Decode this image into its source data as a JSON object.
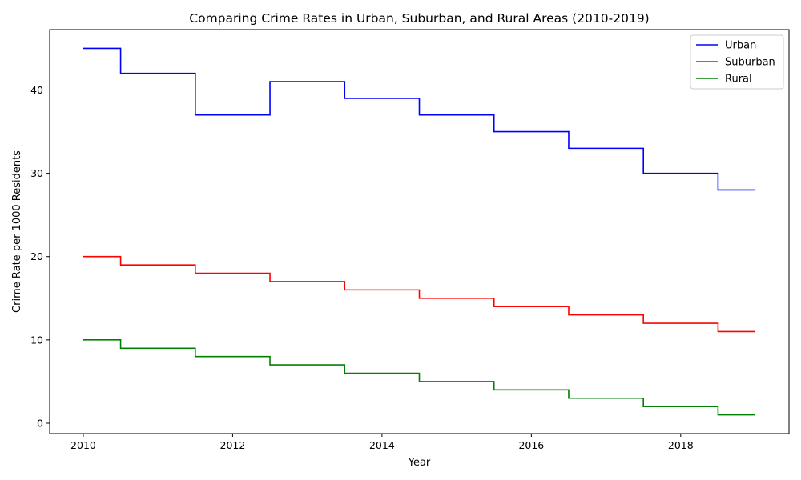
{
  "chart_data": {
    "type": "line",
    "step": "mid",
    "title": "Comparing Crime Rates in Urban, Suburban, and Rural Areas (2010-2019)",
    "xlabel": "Year",
    "ylabel": "Crime Rate per 1000 Residents",
    "xlim": [
      2009.55,
      2019.45
    ],
    "ylim": [
      -1.25,
      47.25
    ],
    "xticks": [
      2010,
      2012,
      2014,
      2016,
      2018
    ],
    "yticks": [
      0,
      10,
      20,
      30,
      40
    ],
    "x": [
      2010,
      2011,
      2012,
      2013,
      2014,
      2015,
      2016,
      2017,
      2018,
      2019
    ],
    "series": [
      {
        "name": "Urban",
        "color": "#0000ff",
        "values": [
          45,
          42,
          37,
          41,
          39,
          37,
          35,
          33,
          30,
          28
        ]
      },
      {
        "name": "Suburban",
        "color": "#ff0000",
        "values": [
          20,
          19,
          18,
          17,
          16,
          15,
          14,
          13,
          12,
          11
        ]
      },
      {
        "name": "Rural",
        "color": "#008000",
        "values": [
          10,
          9,
          8,
          7,
          6,
          5,
          4,
          3,
          2,
          1
        ]
      }
    ],
    "grid": false,
    "legend_position": "top-right"
  }
}
